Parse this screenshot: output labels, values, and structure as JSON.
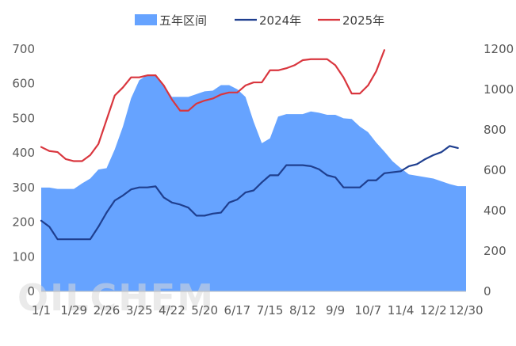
{
  "chart_data": {
    "type": "line",
    "title": "",
    "xlabel": "",
    "ylabel": "",
    "watermark": "OILCHEM",
    "legend": {
      "placement": "top-center",
      "items": [
        {
          "label": "五年区间",
          "kind": "area",
          "color": "#66a3ff"
        },
        {
          "label": "2024年",
          "kind": "line",
          "color": "#1f3f8f"
        },
        {
          "label": "2025年",
          "kind": "line",
          "color": "#d9363e"
        }
      ]
    },
    "x_ticks": [
      "1/1",
      "1/29",
      "2/26",
      "3/25",
      "4/22",
      "5/20",
      "6/17",
      "7/15",
      "8/12",
      "9/9",
      "10/7",
      "11/4",
      "12/2",
      "12/30"
    ],
    "y_left": {
      "min": 0,
      "max": 700,
      "step": 100,
      "ticks": [
        "0",
        "100",
        "200",
        "300",
        "400",
        "500",
        "600",
        "700"
      ]
    },
    "y_right": {
      "min": 0,
      "max": 1200,
      "step": 200,
      "ticks": [
        "0",
        "200",
        "400",
        "600",
        "800",
        "1000",
        "1200"
      ]
    },
    "grid": false,
    "series": [
      {
        "name": "五年区间",
        "axis": "left",
        "style": "area",
        "color": "#66a3ff",
        "x": [
          0,
          1,
          2,
          3,
          4,
          5,
          6,
          7,
          8,
          9,
          10,
          11,
          12,
          13,
          14,
          15,
          16,
          17,
          18,
          19,
          20,
          21,
          22,
          23,
          24,
          25,
          26,
          27,
          28,
          29,
          30,
          31,
          32,
          33,
          34,
          35,
          36,
          37,
          38,
          39,
          40,
          41,
          42,
          43,
          44,
          45,
          46,
          47,
          48,
          49,
          50,
          51,
          52
        ],
        "values": [
          300,
          300,
          296,
          296,
          296,
          312,
          326,
          352,
          356,
          410,
          476,
          558,
          610,
          626,
          626,
          596,
          562,
          562,
          562,
          570,
          578,
          580,
          596,
          596,
          584,
          562,
          490,
          428,
          442,
          505,
          512,
          512,
          512,
          520,
          516,
          510,
          510,
          500,
          498,
          476,
          460,
          430,
          404,
          376,
          356,
          338,
          334,
          330,
          326,
          318,
          310,
          304,
          304
        ]
      },
      {
        "name": "2024年",
        "axis": "right",
        "style": "line",
        "color": "#1f3f8f",
        "x": [
          0,
          1,
          2,
          3,
          4,
          5,
          6,
          7,
          8,
          9,
          10,
          11,
          12,
          13,
          14,
          15,
          16,
          17,
          18,
          19,
          20,
          21,
          22,
          23,
          24,
          25,
          26,
          27,
          28,
          29,
          30,
          31,
          32,
          33,
          34,
          35,
          36,
          37,
          38,
          39,
          40,
          41,
          42,
          43,
          44,
          45,
          46,
          47,
          48,
          49,
          50,
          51
        ],
        "values": [
          350,
          320,
          258,
          258,
          258,
          258,
          258,
          320,
          390,
          450,
          475,
          505,
          515,
          515,
          520,
          465,
          440,
          430,
          415,
          375,
          375,
          385,
          390,
          440,
          455,
          490,
          500,
          540,
          575,
          575,
          625,
          625,
          625,
          620,
          605,
          575,
          565,
          515,
          515,
          515,
          550,
          550,
          585,
          590,
          595,
          620,
          630,
          655,
          675,
          690,
          720,
          710
        ]
      },
      {
        "name": "2025年",
        "axis": "right",
        "style": "line",
        "color": "#d9363e",
        "x": [
          0,
          1,
          2,
          3,
          4,
          5,
          6,
          7,
          8,
          9,
          10,
          11,
          12,
          13,
          14,
          15,
          16,
          17,
          18,
          19,
          20,
          21,
          22,
          23,
          24,
          25,
          26,
          27,
          28,
          29,
          30,
          31,
          32,
          33,
          34,
          35,
          36,
          37,
          38,
          39,
          40,
          41,
          42
        ],
        "values": [
          715,
          695,
          690,
          655,
          645,
          645,
          675,
          730,
          850,
          970,
          1010,
          1060,
          1060,
          1070,
          1070,
          1020,
          950,
          895,
          895,
          930,
          945,
          955,
          975,
          985,
          985,
          1020,
          1035,
          1035,
          1095,
          1095,
          1105,
          1120,
          1145,
          1150,
          1150,
          1150,
          1120,
          1060,
          980,
          980,
          1020,
          1090,
          1195
        ]
      }
    ]
  }
}
